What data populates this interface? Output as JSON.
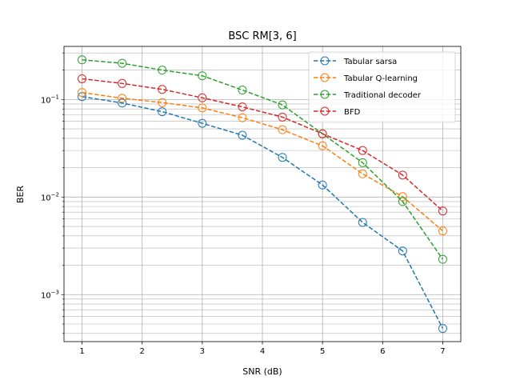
{
  "chart_data": {
    "type": "line",
    "title": "BSC RM[3, 6]",
    "xlabel": "SNR (dB)",
    "ylabel": "BER",
    "yscale": "log",
    "xlim": [
      0.7,
      7.3
    ],
    "ylim": [
      0.00033,
      0.35
    ],
    "xticks": [
      1,
      2,
      3,
      4,
      5,
      6,
      7
    ],
    "ytick_labels": [
      {
        "value": 0.001,
        "label": "10",
        "exp": "−3"
      },
      {
        "value": 0.01,
        "label": "10",
        "exp": "−2"
      },
      {
        "value": 0.1,
        "label": "10",
        "exp": "−1"
      }
    ],
    "grid": true,
    "legend_position": "top-right",
    "x": [
      1,
      1.667,
      2.333,
      3,
      3.667,
      4.333,
      5,
      5.667,
      6.333,
      7
    ],
    "series": [
      {
        "name": "Tabular sarsa",
        "color": "#1f77b4",
        "values": [
          0.107,
          0.092,
          0.075,
          0.057,
          0.043,
          0.0255,
          0.0133,
          0.0055,
          0.0028,
          0.00045
        ]
      },
      {
        "name": "Tabular Q-learning",
        "color": "#ff7f0e",
        "values": [
          0.118,
          0.103,
          0.093,
          0.082,
          0.065,
          0.049,
          0.0335,
          0.0173,
          0.0101,
          0.0045
        ]
      },
      {
        "name": "Traditional decoder",
        "color": "#2ca02c",
        "values": [
          0.255,
          0.235,
          0.2,
          0.175,
          0.125,
          0.088,
          0.0445,
          0.0225,
          0.009,
          0.0023
        ]
      },
      {
        "name": "BFD",
        "color": "#d62728",
        "values": [
          0.163,
          0.146,
          0.127,
          0.104,
          0.084,
          0.066,
          0.0445,
          0.03,
          0.0168,
          0.0072
        ]
      }
    ]
  }
}
